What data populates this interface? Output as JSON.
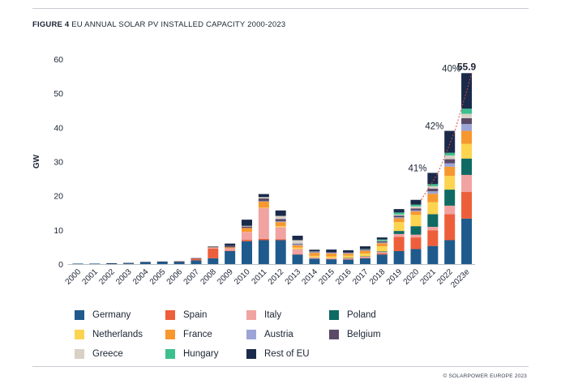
{
  "figure": {
    "label": "FIGURE 4",
    "title": "EU ANNUAL SOLAR PV INSTALLED CAPACITY 2000-2023"
  },
  "copyright": "© SOLARPOWER EUROPE 2023",
  "colors": {
    "Germany": "#1f5a8c",
    "Spain": "#ec5f3a",
    "Italy": "#f1a3a1",
    "Poland": "#0f6a63",
    "Netherlands": "#fcd44f",
    "France": "#f7982e",
    "Austria": "#9ca5d6",
    "Belgium": "#5a4a67",
    "Greece": "#d9d1c6",
    "Hungary": "#3dbf8e",
    "Rest of EU": "#1a2a4a"
  },
  "legend_items": [
    "Germany",
    "Spain",
    "Italy",
    "Poland",
    "Netherlands",
    "France",
    "Austria",
    "Belgium",
    "Greece",
    "Hungary",
    "Rest of EU"
  ],
  "chart_data": {
    "type": "bar",
    "stacked": true,
    "title": "EU ANNUAL SOLAR PV INSTALLED CAPACITY 2000-2023",
    "xlabel": "",
    "ylabel": "GW",
    "ylim": [
      0,
      60
    ],
    "yticks": [
      0,
      10,
      20,
      30,
      40,
      50,
      60
    ],
    "grid": false,
    "legend_position": "bottom",
    "categories": [
      "2000",
      "2001",
      "2002",
      "2003",
      "2004",
      "2005",
      "2006",
      "2007",
      "2008",
      "2009",
      "2010",
      "2011",
      "2012",
      "2013",
      "2014",
      "2015",
      "2016",
      "2017",
      "2018",
      "2019",
      "2020",
      "2021",
      "2022",
      "2023e"
    ],
    "series": [
      {
        "name": "Germany",
        "values": [
          0.05,
          0.1,
          0.1,
          0.2,
          0.5,
          0.6,
          0.6,
          1.1,
          1.7,
          3.8,
          6.7,
          7.0,
          7.0,
          2.8,
          1.6,
          1.4,
          1.3,
          1.7,
          2.8,
          3.8,
          4.4,
          5.3,
          7.0,
          13.3
        ]
      },
      {
        "name": "Spain",
        "values": [
          0,
          0,
          0,
          0,
          0,
          0,
          0.05,
          0.5,
          2.8,
          0.1,
          0.4,
          0.4,
          0.3,
          0.1,
          0,
          0.05,
          0.05,
          0.1,
          0.3,
          4.2,
          3.4,
          4.6,
          7.6,
          7.8
        ]
      },
      {
        "name": "Italy",
        "values": [
          0,
          0,
          0,
          0,
          0,
          0,
          0,
          0,
          0.3,
          0.7,
          2.3,
          9.0,
          3.5,
          1.5,
          0.4,
          0.3,
          0.4,
          0.4,
          0.4,
          0.8,
          0.8,
          1.0,
          2.5,
          5.0
        ]
      },
      {
        "name": "Poland",
        "values": [
          0,
          0,
          0,
          0,
          0,
          0,
          0,
          0,
          0,
          0,
          0,
          0,
          0,
          0,
          0,
          0,
          0.1,
          0.1,
          0.2,
          0.9,
          2.5,
          3.7,
          4.7,
          4.8
        ]
      },
      {
        "name": "Netherlands",
        "values": [
          0,
          0,
          0,
          0,
          0,
          0,
          0,
          0,
          0,
          0,
          0.05,
          0.1,
          0.3,
          0.4,
          0.4,
          0.5,
          0.6,
          0.8,
          1.5,
          2.6,
          3.3,
          3.5,
          4.0,
          4.3
        ]
      },
      {
        "name": "France",
        "values": [
          0,
          0,
          0,
          0,
          0,
          0,
          0,
          0,
          0.1,
          0.3,
          1.1,
          1.8,
          1.2,
          0.7,
          0.9,
          0.9,
          0.6,
          0.8,
          0.9,
          1.1,
          1.0,
          2.5,
          2.7,
          3.8
        ]
      },
      {
        "name": "Austria",
        "values": [
          0,
          0,
          0,
          0,
          0,
          0,
          0,
          0,
          0,
          0,
          0.05,
          0.1,
          0.2,
          0.3,
          0.2,
          0.2,
          0.2,
          0.2,
          0.2,
          0.3,
          0.3,
          0.7,
          1.0,
          2.0
        ]
      },
      {
        "name": "Belgium",
        "values": [
          0,
          0,
          0,
          0,
          0,
          0,
          0,
          0,
          0.1,
          0.5,
          0.4,
          0.8,
          0.7,
          0.2,
          0.1,
          0.1,
          0.2,
          0.3,
          0.4,
          0.5,
          0.6,
          0.8,
          1.2,
          1.7
        ]
      },
      {
        "name": "Greece",
        "values": [
          0,
          0,
          0,
          0,
          0,
          0,
          0,
          0,
          0,
          0,
          0.2,
          0.4,
          0.9,
          1.0,
          0.1,
          0,
          0,
          0,
          0.1,
          0.3,
          0.6,
          0.7,
          1.1,
          1.3
        ]
      },
      {
        "name": "Hungary",
        "values": [
          0,
          0,
          0,
          0,
          0,
          0,
          0,
          0,
          0,
          0,
          0,
          0,
          0,
          0,
          0,
          0,
          0,
          0.1,
          0.4,
          0.6,
          0.5,
          0.6,
          0.8,
          1.5
        ]
      },
      {
        "name": "Rest of EU",
        "values": [
          0,
          0,
          0.05,
          0.05,
          0.1,
          0.1,
          0.05,
          0.1,
          0.1,
          0.6,
          1.8,
          0.9,
          1.6,
          1.3,
          0.5,
          0.8,
          0.6,
          0.7,
          0.6,
          1.0,
          1.4,
          3.3,
          6.4,
          10.4
        ]
      }
    ],
    "annotations": [
      {
        "text": "41%",
        "category": "2020"
      },
      {
        "text": "42%",
        "category": "2021"
      },
      {
        "text": "40%",
        "category": "2022"
      },
      {
        "text": "55.9",
        "category": "2023e",
        "value": 55.9
      }
    ]
  }
}
